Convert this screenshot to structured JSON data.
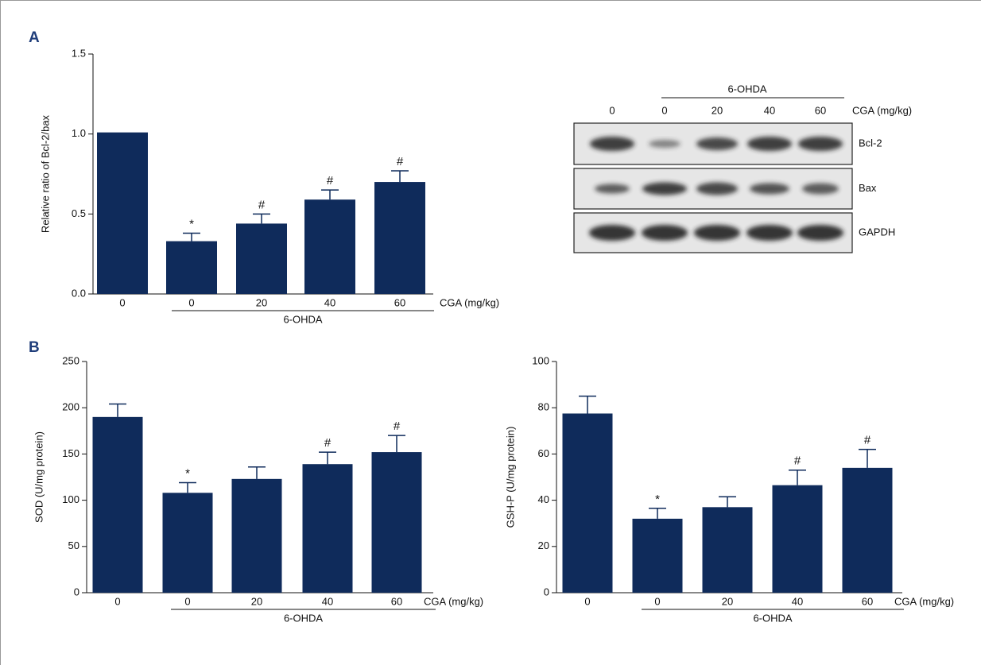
{
  "panel_labels": [
    "A",
    "B"
  ],
  "blot": {
    "treatment": "6-OHDA",
    "dose_label": "CGA (mg/kg)",
    "lanes": [
      "0",
      "0",
      "20",
      "40",
      "60"
    ],
    "rows": [
      "Bcl-2",
      "Bax",
      "GAPDH"
    ]
  },
  "chart_data": [
    {
      "type": "bar",
      "y_label": "Relative ratio of Bcl-2/bax",
      "x_label": "CGA (mg/kg)",
      "group_label": "6-OHDA",
      "categories": [
        "0",
        "0",
        "20",
        "40",
        "60"
      ],
      "values": [
        1.01,
        0.33,
        0.44,
        0.59,
        0.7
      ],
      "errors": [
        null,
        0.05,
        0.06,
        0.06,
        0.07
      ],
      "annotations": [
        null,
        "*",
        "#",
        "#",
        "#"
      ],
      "color": "#0f2b5b",
      "ylim": [
        0,
        1.5
      ],
      "yticks": [
        {
          "value": 0,
          "label": "0.0"
        },
        0.5,
        {
          "value": 1,
          "label": "1.0"
        },
        1.5
      ]
    },
    {
      "type": "bar",
      "y_label": "SOD (U/mg protein)",
      "x_label": "CGA (mg/kg)",
      "group_label": "6-OHDA",
      "categories": [
        "0",
        "0",
        "20",
        "40",
        "60"
      ],
      "values": [
        190,
        108,
        123,
        139,
        152
      ],
      "errors": [
        14,
        11,
        13,
        13,
        18
      ],
      "annotations": [
        null,
        "*",
        null,
        "#",
        "#"
      ],
      "color": "#0f2b5b",
      "ylim": [
        0,
        250
      ],
      "yticks": [
        0,
        50,
        100,
        150,
        200,
        250
      ]
    },
    {
      "type": "bar",
      "y_label": "GSH-P (U/mg protein)",
      "x_label": "CGA (mg/kg)",
      "group_label": "6-OHDA",
      "categories": [
        "0",
        "0",
        "20",
        "40",
        "60"
      ],
      "values": [
        77.5,
        32,
        37,
        46.5,
        54
      ],
      "errors": [
        7.5,
        4.5,
        4.5,
        6.5,
        8
      ],
      "annotations": [
        null,
        "*",
        null,
        "#",
        "#"
      ],
      "color": "#0f2b5b",
      "ylim": [
        0,
        100
      ],
      "yticks": [
        0,
        20,
        40,
        60,
        80,
        100
      ]
    }
  ]
}
